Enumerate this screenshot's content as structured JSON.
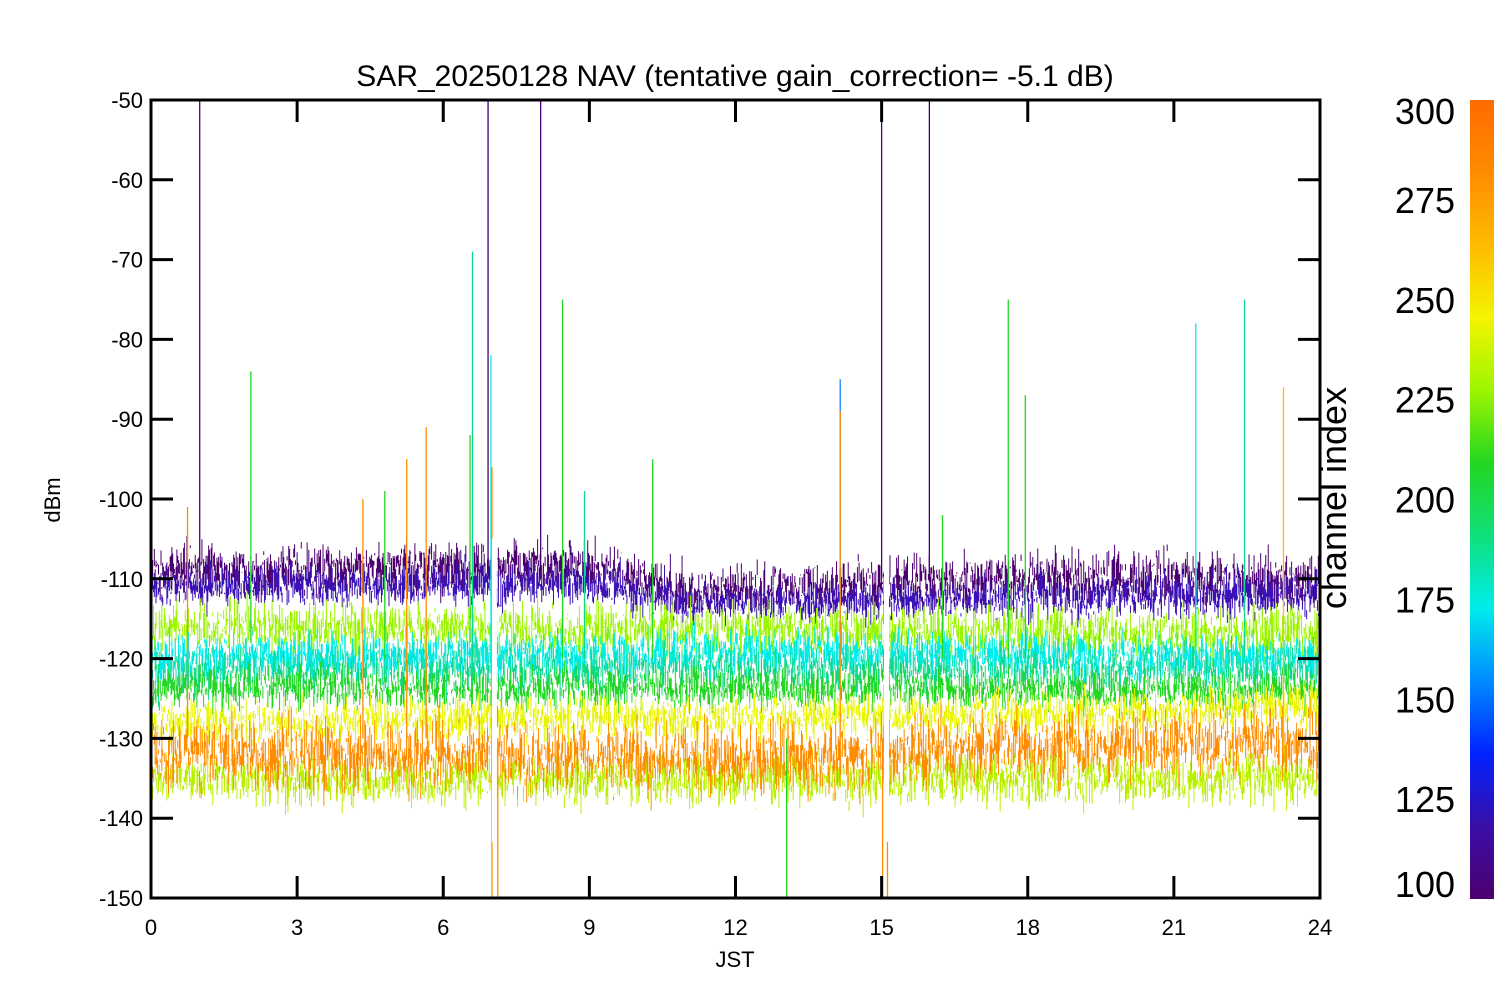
{
  "chart_data": {
    "type": "line",
    "title": "SAR_20250128 NAV (tentative gain_correction= -5.1 dB)",
    "xlabel": "JST",
    "ylabel": "dBm",
    "xlim": [
      0,
      24
    ],
    "ylim": [
      -150,
      -50
    ],
    "xticks": [
      0,
      3,
      6,
      9,
      12,
      15,
      18,
      21,
      24
    ],
    "yticks": [
      -50,
      -60,
      -70,
      -80,
      -90,
      -100,
      -110,
      -120,
      -130,
      -140,
      -150
    ],
    "grid": false,
    "data_gaps_jst": [
      7.05,
      15.1
    ],
    "bands": [
      {
        "channel_index": 100,
        "color": "#4b006e",
        "median_dBm": -110,
        "spread_dBm": 3,
        "trend": [
          [
            0,
            -109
          ],
          [
            8,
            -108.5
          ],
          [
            9.5,
            -109
          ],
          [
            11,
            -112
          ],
          [
            13,
            -111
          ],
          [
            15.5,
            -110.5
          ],
          [
            18,
            -110
          ],
          [
            24,
            -110
          ]
        ]
      },
      {
        "channel_index": 115,
        "color": "#3b12b8",
        "median_dBm": -111.5,
        "spread_dBm": 2.5,
        "trend": [
          [
            0,
            -111
          ],
          [
            9,
            -110.5
          ],
          [
            11,
            -113
          ],
          [
            24,
            -112
          ]
        ]
      },
      {
        "channel_index": 255,
        "color": "#9cf500",
        "median_dBm": -116.5,
        "spread_dBm": 3,
        "trend": [
          [
            0,
            -116
          ],
          [
            12,
            -116.5
          ],
          [
            24,
            -117
          ]
        ]
      },
      {
        "channel_index": 220,
        "color": "#10d890",
        "median_dBm": -121,
        "spread_dBm": 3,
        "trend": [
          [
            0,
            -121
          ],
          [
            24,
            -121
          ]
        ]
      },
      {
        "channel_index": 175,
        "color": "#00ecec",
        "median_dBm": -120,
        "spread_dBm": 2.5,
        "trend": [
          [
            0,
            -120
          ],
          [
            12,
            -119
          ],
          [
            24,
            -120
          ]
        ]
      },
      {
        "channel_index": 230,
        "color": "#22d622",
        "median_dBm": -123.5,
        "spread_dBm": 2.5,
        "trend": [
          [
            0,
            -123.5
          ],
          [
            24,
            -124
          ]
        ]
      },
      {
        "channel_index": 268,
        "color": "#e8f400",
        "median_dBm": -128,
        "spread_dBm": 2.5,
        "trend": [
          [
            0,
            -128
          ],
          [
            18,
            -127
          ],
          [
            24,
            -126
          ]
        ]
      },
      {
        "channel_index": 260,
        "color": "#b8f000",
        "median_dBm": -135,
        "spread_dBm": 3,
        "trend": [
          [
            0,
            -135
          ],
          [
            24,
            -135
          ]
        ]
      },
      {
        "channel_index": 290,
        "color": "#ff8c00",
        "median_dBm": -132,
        "spread_dBm": 4,
        "trend": [
          [
            0,
            -132
          ],
          [
            14,
            -132.5
          ],
          [
            18,
            -131
          ],
          [
            24,
            -130.5
          ]
        ]
      }
    ],
    "spikes": [
      {
        "x": 1.0,
        "top": -50,
        "bottom": -110,
        "color": "#4b006e"
      },
      {
        "x": 2.05,
        "top": -84,
        "bottom": -118,
        "color": "#22d622"
      },
      {
        "x": 0.75,
        "top": -101,
        "bottom": -130,
        "color": "#ff8c00"
      },
      {
        "x": 4.35,
        "top": -100,
        "bottom": -130,
        "color": "#ff8c00"
      },
      {
        "x": 4.8,
        "top": -99,
        "bottom": -120,
        "color": "#22d622"
      },
      {
        "x": 5.25,
        "top": -95,
        "bottom": -130,
        "color": "#ff8c00"
      },
      {
        "x": 5.65,
        "top": -91,
        "bottom": -130,
        "color": "#ff8c00"
      },
      {
        "x": 6.6,
        "top": -69,
        "bottom": -121,
        "color": "#10d890"
      },
      {
        "x": 6.55,
        "top": -92,
        "bottom": -118,
        "color": "#22d622"
      },
      {
        "x": 6.98,
        "top": -82,
        "bottom": -120,
        "color": "#00ecec"
      },
      {
        "x": 6.92,
        "top": -50,
        "bottom": -110,
        "color": "#4b006e"
      },
      {
        "x": 7.12,
        "top": -130,
        "bottom": -150,
        "color": "#ff8c00"
      },
      {
        "x": 7.0,
        "top": -96,
        "bottom": -150,
        "color": "#ff8c00"
      },
      {
        "x": 8.0,
        "top": -50,
        "bottom": -110,
        "color": "#4b006e"
      },
      {
        "x": 8.45,
        "top": -75,
        "bottom": -120,
        "color": "#22d622"
      },
      {
        "x": 8.9,
        "top": -99,
        "bottom": -120,
        "color": "#10d890"
      },
      {
        "x": 10.3,
        "top": -95,
        "bottom": -120,
        "color": "#22d622"
      },
      {
        "x": 13.05,
        "top": -130,
        "bottom": -150,
        "color": "#22d622"
      },
      {
        "x": 14.15,
        "top": -85,
        "bottom": -120,
        "color": "#1a7fff"
      },
      {
        "x": 14.15,
        "top": -89,
        "bottom": -132,
        "color": "#ff8c00"
      },
      {
        "x": 15.0,
        "top": -50,
        "bottom": -110,
        "color": "#4b006e"
      },
      {
        "x": 15.02,
        "top": -130,
        "bottom": -150,
        "color": "#ff8c00"
      },
      {
        "x": 15.12,
        "top": -130,
        "bottom": -150,
        "color": "#ff8c00"
      },
      {
        "x": 15.98,
        "top": -50,
        "bottom": -110,
        "color": "#4b006e"
      },
      {
        "x": 16.25,
        "top": -102,
        "bottom": -120,
        "color": "#22d622"
      },
      {
        "x": 17.6,
        "top": -75,
        "bottom": -120,
        "color": "#22d622"
      },
      {
        "x": 17.95,
        "top": -87,
        "bottom": -120,
        "color": "#22d622"
      },
      {
        "x": 21.45,
        "top": -78,
        "bottom": -120,
        "color": "#00ecec"
      },
      {
        "x": 22.45,
        "top": -75,
        "bottom": -120,
        "color": "#10d890"
      },
      {
        "x": 23.25,
        "top": -86,
        "bottom": -132,
        "color": "#ffbb00"
      }
    ]
  },
  "colorbar": {
    "label": "channel index",
    "min": 100,
    "max": 300,
    "ticks": [
      100,
      125,
      150,
      175,
      200,
      225,
      250,
      275,
      300
    ],
    "colors": [
      "#4b006e",
      "#3a0fa8",
      "#0022ff",
      "#008cff",
      "#00ecec",
      "#10e07a",
      "#22d622",
      "#9cf500",
      "#f4f400",
      "#ffbb00",
      "#ff8c00",
      "#ff6a00"
    ]
  }
}
